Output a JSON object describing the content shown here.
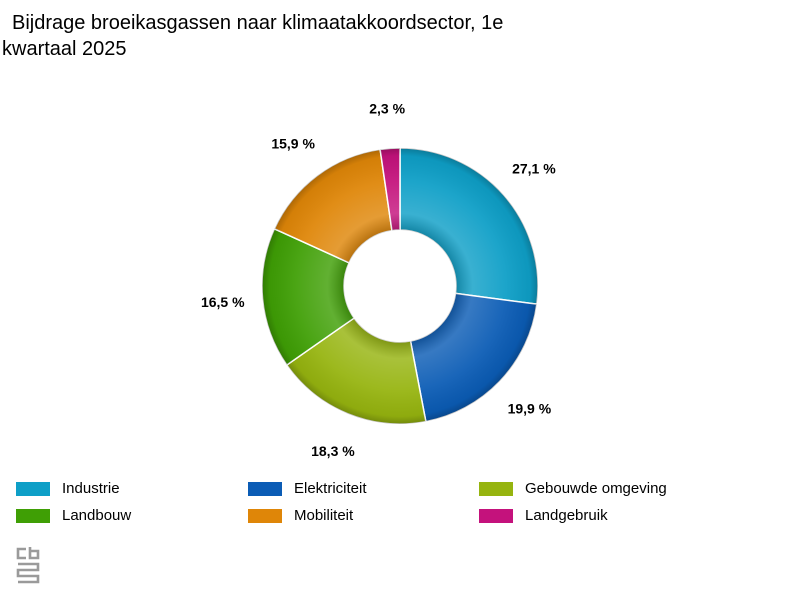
{
  "title_line1": "Bijdrage broeikasgassen naar klimaatakkoordsector, 1e",
  "title_line2": "kwartaal 2025",
  "chart_data": {
    "type": "pie",
    "variant": "donut",
    "title": "Bijdrage broeikasgassen naar klimaatakkoordsector, 1e kwartaal 2025",
    "categories": [
      "Industrie",
      "Elektriciteit",
      "Gebouwde omgeving",
      "Landbouw",
      "Mobiliteit",
      "Landgebruik"
    ],
    "values": [
      27.1,
      19.9,
      18.3,
      16.5,
      15.9,
      2.3
    ],
    "labels": [
      "27,1 %",
      "19,9 %",
      "18,3 %",
      "16,5 %",
      "15,9 %",
      "2,3 %"
    ],
    "colors": [
      "#0e9fc7",
      "#0b5cb5",
      "#96b40f",
      "#3f9f05",
      "#df8608",
      "#c4127c"
    ],
    "legend_position": "bottom"
  },
  "legend": [
    {
      "label": "Industrie",
      "color": "#0e9fc7"
    },
    {
      "label": "Elektriciteit",
      "color": "#0b5cb5"
    },
    {
      "label": "Gebouwde omgeving",
      "color": "#96b40f"
    },
    {
      "label": "Landbouw",
      "color": "#3f9f05"
    },
    {
      "label": "Mobiliteit",
      "color": "#df8608"
    },
    {
      "label": "Landgebruik",
      "color": "#c4127c"
    }
  ],
  "logo": {
    "text": "cbs"
  }
}
